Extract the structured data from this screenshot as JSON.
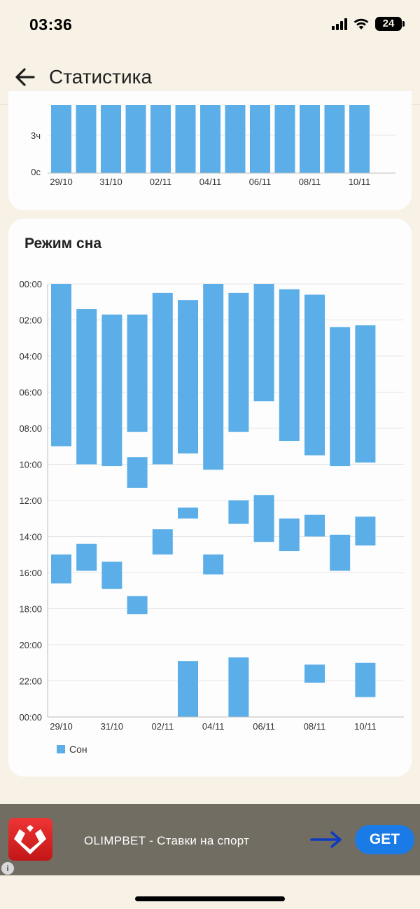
{
  "status_bar": {
    "time": "03:36",
    "battery": "24"
  },
  "app_bar": {
    "title": "Статистика"
  },
  "top_chart": {
    "type": "bar",
    "y_ticks": [
      "3ч",
      "0с"
    ],
    "x_labels": [
      "29/10",
      "31/10",
      "02/11",
      "04/11",
      "06/11",
      "08/11",
      "10/11"
    ],
    "bar_count": 13,
    "color": "#5baee8"
  },
  "sleep_card": {
    "title": "Режим сна"
  },
  "chart_data": {
    "type": "bar",
    "title": "Режим сна",
    "subtype": "floating-range",
    "ylabel": "",
    "xlabel": "",
    "y_ticks": [
      "00:00",
      "02:00",
      "04:00",
      "06:00",
      "08:00",
      "10:00",
      "12:00",
      "14:00",
      "16:00",
      "18:00",
      "20:00",
      "22:00",
      "00:00"
    ],
    "ylim_hours": [
      0,
      24
    ],
    "x_labels": [
      "29/10",
      "31/10",
      "02/11",
      "04/11",
      "06/11",
      "08/11",
      "10/11"
    ],
    "categories": [
      "29/10",
      "30/10",
      "31/10",
      "01/11",
      "02/11",
      "03/11",
      "04/11",
      "05/11",
      "06/11",
      "07/11",
      "08/11",
      "09/11",
      "10/11"
    ],
    "series": [
      {
        "name": "Сон",
        "color": "#5baee8",
        "segments": [
          {
            "day": 0,
            "start": 0.0,
            "end": 9.0
          },
          {
            "day": 0,
            "start": 15.0,
            "end": 16.6
          },
          {
            "day": 1,
            "start": 1.4,
            "end": 10.0
          },
          {
            "day": 1,
            "start": 14.4,
            "end": 15.9
          },
          {
            "day": 2,
            "start": 1.7,
            "end": 10.1
          },
          {
            "day": 2,
            "start": 15.4,
            "end": 16.9
          },
          {
            "day": 3,
            "start": 1.7,
            "end": 8.2
          },
          {
            "day": 3,
            "start": 9.6,
            "end": 11.3
          },
          {
            "day": 3,
            "start": 17.3,
            "end": 18.3
          },
          {
            "day": 4,
            "start": 0.5,
            "end": 10.0
          },
          {
            "day": 4,
            "start": 13.6,
            "end": 15.0
          },
          {
            "day": 5,
            "start": 0.9,
            "end": 9.4
          },
          {
            "day": 5,
            "start": 12.4,
            "end": 13.0
          },
          {
            "day": 5,
            "start": 20.9,
            "end": 24.0
          },
          {
            "day": 6,
            "start": 0.0,
            "end": 10.3
          },
          {
            "day": 6,
            "start": 15.0,
            "end": 16.1
          },
          {
            "day": 7,
            "start": 0.5,
            "end": 8.2
          },
          {
            "day": 7,
            "start": 12.0,
            "end": 13.3
          },
          {
            "day": 7,
            "start": 20.7,
            "end": 24.0
          },
          {
            "day": 8,
            "start": 0.0,
            "end": 6.5
          },
          {
            "day": 8,
            "start": 11.7,
            "end": 14.3
          },
          {
            "day": 9,
            "start": 0.3,
            "end": 8.7
          },
          {
            "day": 9,
            "start": 13.0,
            "end": 14.8
          },
          {
            "day": 10,
            "start": 0.6,
            "end": 9.5
          },
          {
            "day": 10,
            "start": 12.8,
            "end": 14.0
          },
          {
            "day": 10,
            "start": 21.1,
            "end": 22.1
          },
          {
            "day": 11,
            "start": 2.4,
            "end": 10.1
          },
          {
            "day": 11,
            "start": 13.9,
            "end": 15.9
          },
          {
            "day": 12,
            "start": 2.3,
            "end": 9.9
          },
          {
            "day": 12,
            "start": 12.9,
            "end": 14.5
          },
          {
            "day": 12,
            "start": 21.0,
            "end": 22.9
          }
        ]
      }
    ],
    "legend": {
      "position": "bottom-left",
      "label": "Сон"
    }
  },
  "ad": {
    "text": "OLIMPBET - Ставки на спорт",
    "button": "GET",
    "info": "i"
  }
}
